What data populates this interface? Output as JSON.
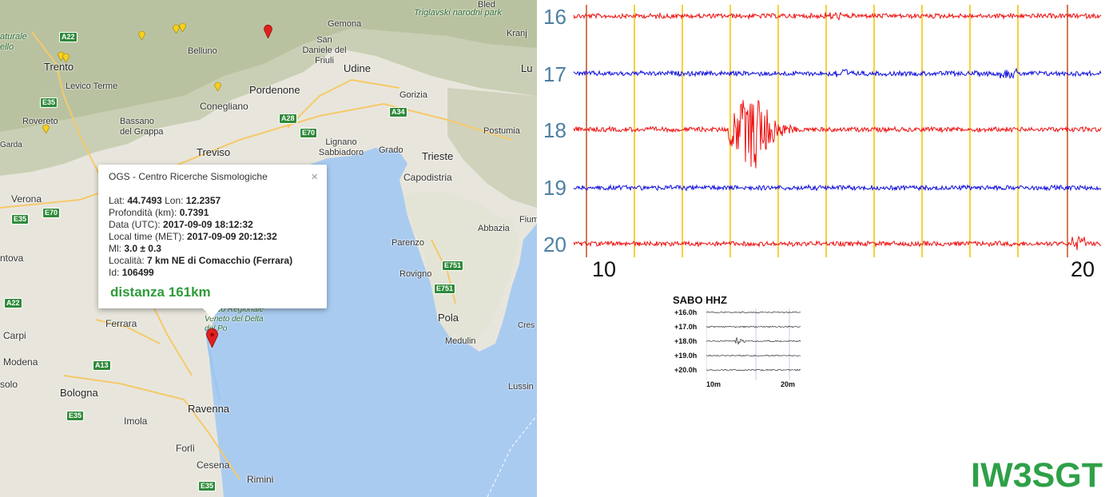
{
  "map": {
    "places": [
      {
        "name": "Trento",
        "key": "trento"
      },
      {
        "name": "Levico Terme",
        "key": "levico"
      },
      {
        "name": "Rovereto",
        "key": "rovereto"
      },
      {
        "name": "Bassano del Grappa",
        "key": "bassano"
      },
      {
        "name": "Belluno",
        "key": "belluno"
      },
      {
        "name": "Conegliano",
        "key": "conegliano"
      },
      {
        "name": "Pordenone",
        "key": "pordenone"
      },
      {
        "name": "Udine",
        "key": "udine"
      },
      {
        "name": "Gemona",
        "key": "gemona"
      },
      {
        "name": "San Daniele del Friuli",
        "key": "sandaniele"
      },
      {
        "name": "Gorizia",
        "key": "gorizia"
      },
      {
        "name": "Postumia",
        "key": "postumia"
      },
      {
        "name": "Treviso",
        "key": "treviso"
      },
      {
        "name": "Lignano Sabbiadoro",
        "key": "lignano"
      },
      {
        "name": "Grado",
        "key": "grado"
      },
      {
        "name": "Trieste",
        "key": "trieste"
      },
      {
        "name": "Capodistria",
        "key": "capodistria"
      },
      {
        "name": "Verona",
        "key": "verona"
      },
      {
        "name": "Parenzo",
        "key": "parenzo"
      },
      {
        "name": "Rovigno",
        "key": "rovigno"
      },
      {
        "name": "Abbazia",
        "key": "abbazia"
      },
      {
        "name": "Pola",
        "key": "pola"
      },
      {
        "name": "Medulin",
        "key": "medulin"
      },
      {
        "name": "Ferrara",
        "key": "ferrara"
      },
      {
        "name": "Carpi",
        "key": "carpi"
      },
      {
        "name": "Modena",
        "key": "modena"
      },
      {
        "name": "Bologna",
        "key": "bologna"
      },
      {
        "name": "Imola",
        "key": "imola"
      },
      {
        "name": "Ravenna",
        "key": "ravenna"
      },
      {
        "name": "Forlì",
        "key": "forli"
      },
      {
        "name": "Cesena",
        "key": "cesena"
      },
      {
        "name": "Rimini",
        "key": "rimini"
      },
      {
        "name": "Lussin",
        "key": "lussin"
      },
      {
        "name": "Kranj",
        "key": "kranj"
      },
      {
        "name": "Bled",
        "key": "bled"
      },
      {
        "name": "ntova",
        "key": "mantova"
      },
      {
        "name": "Cres",
        "key": "cres"
      },
      {
        "name": "Fiume",
        "key": "fiume"
      },
      {
        "name": "Lu",
        "key": "lu"
      },
      {
        "name": "Triglavski narodni park",
        "key": "triglav"
      },
      {
        "name": "Parco Regionale Veneto del Delta del Po",
        "key": "delta"
      },
      {
        "name": "aturale ello",
        "key": "aturale"
      },
      {
        "name": "Garda",
        "key": "garda"
      },
      {
        "name": "solo",
        "key": "solo"
      }
    ],
    "shields": [
      "A22",
      "E35",
      "A28",
      "E70",
      "A34",
      "E70",
      "E35",
      "E751",
      "E751",
      "A22",
      "A13",
      "E35",
      "E35"
    ],
    "popup": {
      "title": "OGS - Centro Ricerche Sismologiche",
      "close": "×",
      "lat_label": "Lat:",
      "lat": "44.7493",
      "lon_label": "Lon:",
      "lon": "12.2357",
      "depth_label": "Profondità (km):",
      "depth": "0.7391",
      "utc_label": "Data (UTC):",
      "utc": "2017-09-09 18:12:32",
      "met_label": "Local time (MET):",
      "met": "2017-09-09 20:12:32",
      "ml_label": "Ml:",
      "ml": "3.0 ± 0.3",
      "loc_label": "Località:",
      "loc": "7 km NE di Comacchio (Ferrara)",
      "id_label": "Id:",
      "id": "106499",
      "distance": "distanza 161km"
    }
  },
  "seismogram": {
    "hour_labels": [
      "16",
      "17",
      "18",
      "19",
      "20"
    ],
    "x_labels": [
      "10",
      "20"
    ],
    "colors": {
      "red": "#ee1111",
      "blue": "#1111dd",
      "grid": "#f2c200",
      "edge": "#c0501a",
      "hour": "#4e7fa3"
    },
    "mini": {
      "title": "SABO HHZ",
      "rows": [
        "+16.0h",
        "+17.0h",
        "+18.0h",
        "+19.0h",
        "+20.0h"
      ],
      "x_labels": [
        "10m",
        "20m"
      ]
    },
    "brand": "IW3SGT"
  }
}
